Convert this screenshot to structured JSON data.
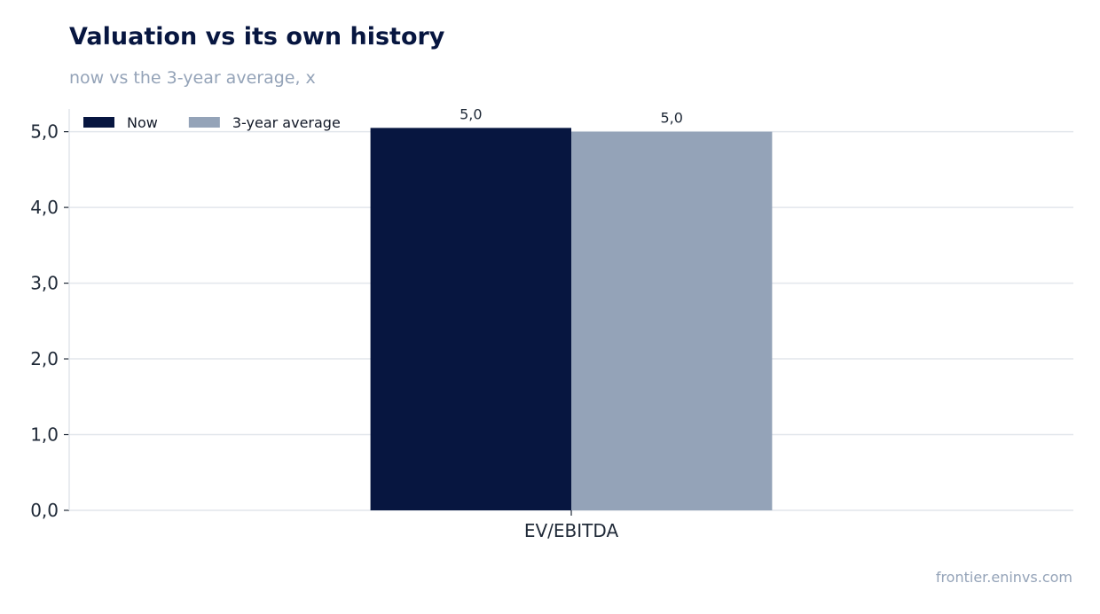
{
  "header": {
    "title": "Valuation vs its own history",
    "subtitle": "now vs the 3-year average, x"
  },
  "footer": {
    "source": "frontier.eninvs.com"
  },
  "chart_data": {
    "type": "bar",
    "categories": [
      "EV/EBITDA"
    ],
    "series": [
      {
        "name": "Now",
        "values": [
          5.05
        ],
        "label": "5,0",
        "color": "#071640"
      },
      {
        "name": "3-year average",
        "values": [
          5.0
        ],
        "label": "5,0",
        "color": "#94a3b8"
      }
    ],
    "ylim": [
      0,
      5.3
    ],
    "yticks": [
      0,
      1,
      2,
      3,
      4,
      5
    ],
    "ytick_labels": [
      "0,0",
      "1,0",
      "2,0",
      "3,0",
      "4,0",
      "5,0"
    ],
    "grid": "horizontal",
    "legend": "top-left",
    "xlabel": "",
    "ylabel": ""
  }
}
